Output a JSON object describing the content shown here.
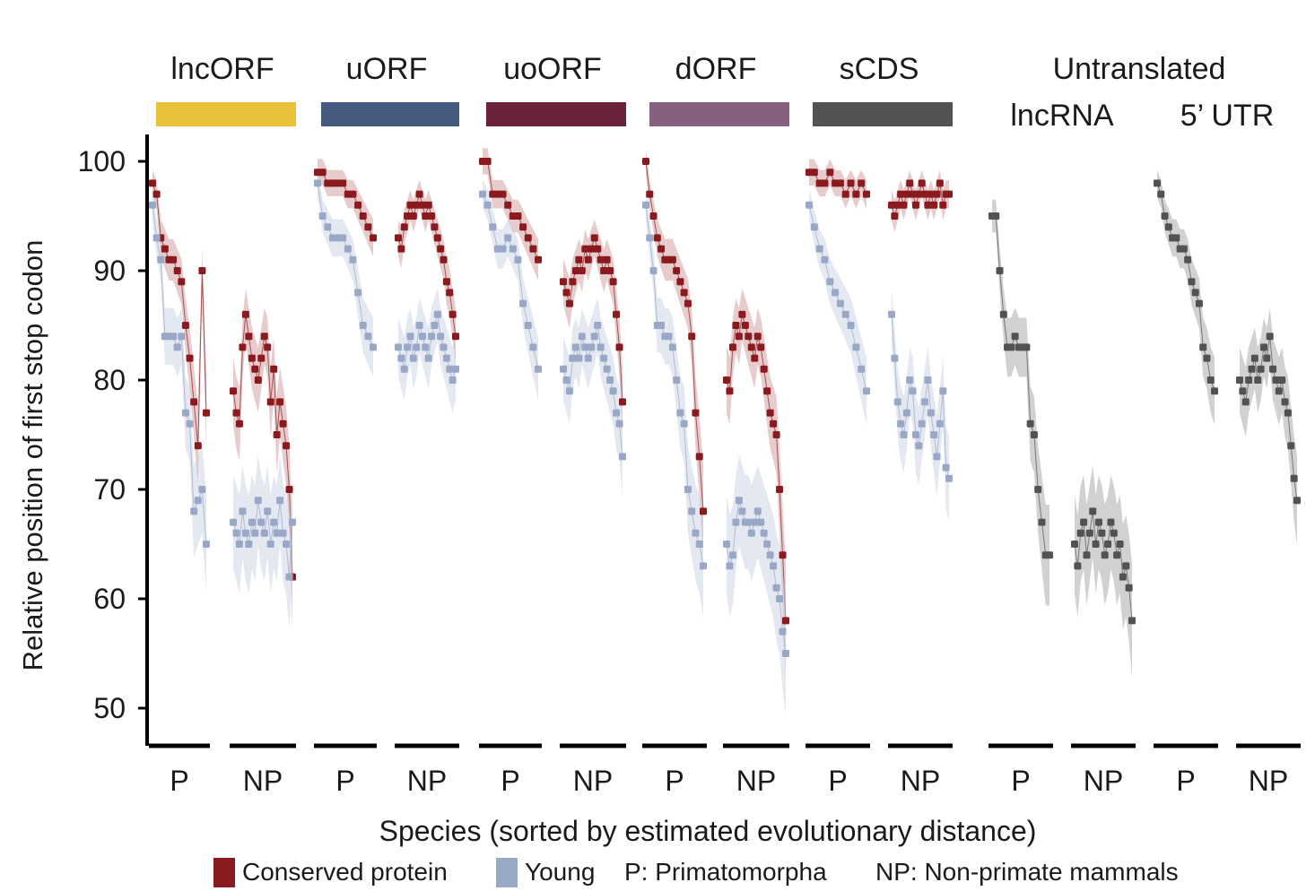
{
  "chart_data": {
    "type": "scatter",
    "title": "",
    "xlabel": "Species (sorted by estimated evolutionary distance)",
    "ylabel": "Relative position of first stop codon",
    "ylim": [
      48,
      103
    ],
    "yticks": [
      100,
      90,
      80,
      70,
      60,
      50
    ],
    "grid": false,
    "groups": [
      {
        "label": "lncORF",
        "color": "#e8c23a",
        "kind": "translated"
      },
      {
        "label": "uORF",
        "color": "#465a80",
        "kind": "translated"
      },
      {
        "label": "uoORF",
        "color": "#6b2139",
        "kind": "translated"
      },
      {
        "label": "dORF",
        "color": "#86607f",
        "kind": "translated"
      },
      {
        "label": "sCDS",
        "color": "#525252",
        "kind": "translated"
      },
      {
        "label": "lncRNA",
        "kind": "untranslated"
      },
      {
        "label": "5’ UTR",
        "kind": "untranslated"
      }
    ],
    "untranslated_header": "Untranslated",
    "subgroup_labels": [
      "P",
      "NP"
    ],
    "series_colors": {
      "Conserved protein": "#8b1a1f",
      "Young": "#9aa8c7",
      "Untranslated": "#525252"
    },
    "series": [
      {
        "group": "lncORF",
        "name": "Conserved protein",
        "P": [
          98,
          97,
          93,
          92,
          91,
          91,
          90,
          89,
          85,
          82,
          78,
          74,
          90,
          77
        ],
        "NP": [
          79,
          77,
          76,
          83,
          86,
          84,
          82,
          81,
          80,
          82,
          84,
          83,
          78,
          81,
          75,
          78,
          76,
          74,
          70,
          62
        ]
      },
      {
        "group": "lncORF",
        "name": "Young",
        "P": [
          96,
          93,
          91,
          84,
          84,
          84,
          83,
          84,
          77,
          76,
          68,
          69,
          70,
          65
        ],
        "NP": [
          67,
          66,
          65,
          68,
          66,
          65,
          67,
          66,
          69,
          67,
          66,
          68,
          65,
          67,
          66,
          69,
          66,
          65,
          62,
          67
        ]
      },
      {
        "group": "uORF",
        "name": "Conserved protein",
        "P": [
          99,
          99,
          98,
          98,
          98,
          98,
          97,
          97,
          96,
          95,
          94,
          93
        ],
        "NP": [
          93,
          92,
          94,
          95,
          96,
          95,
          96,
          97,
          96,
          95,
          96,
          95,
          94,
          93,
          92,
          91,
          89,
          88,
          86,
          84
        ]
      },
      {
        "group": "uORF",
        "name": "Young",
        "P": [
          98,
          95,
          94,
          93,
          93,
          93,
          92,
          91,
          88,
          85,
          84,
          83
        ],
        "NP": [
          83,
          82,
          81,
          83,
          84,
          82,
          83,
          85,
          84,
          83,
          82,
          84,
          85,
          86,
          84,
          83,
          82,
          81,
          80,
          81
        ]
      },
      {
        "group": "uoORF",
        "name": "Conserved protein",
        "P": [
          100,
          100,
          97,
          97,
          97,
          96,
          95,
          95,
          94,
          93,
          92,
          91
        ],
        "NP": [
          89,
          88,
          87,
          89,
          90,
          91,
          90,
          92,
          91,
          92,
          93,
          92,
          91,
          90,
          91,
          90,
          89,
          86,
          83,
          78
        ]
      },
      {
        "group": "uoORF",
        "name": "Young",
        "P": [
          97,
          96,
          94,
          92,
          92,
          93,
          92,
          91,
          87,
          85,
          83,
          81
        ],
        "NP": [
          81,
          80,
          79,
          82,
          83,
          82,
          84,
          83,
          82,
          83,
          84,
          85,
          83,
          82,
          81,
          80,
          79,
          77,
          76,
          73
        ]
      },
      {
        "group": "dORF",
        "name": "Conserved protein",
        "P": [
          100,
          97,
          95,
          93,
          92,
          91,
          91,
          91,
          90,
          89,
          88,
          87,
          84,
          77,
          73,
          68
        ],
        "NP": [
          80,
          79,
          83,
          85,
          84,
          86,
          85,
          84,
          83,
          82,
          84,
          83,
          81,
          79,
          77,
          76,
          75,
          70,
          64,
          58
        ]
      },
      {
        "group": "dORF",
        "name": "Young",
        "P": [
          96,
          93,
          90,
          85,
          85,
          84,
          84,
          83,
          80,
          77,
          76,
          70,
          68,
          66,
          65,
          63
        ],
        "NP": [
          65,
          63,
          64,
          67,
          69,
          68,
          67,
          67,
          66,
          67,
          68,
          67,
          66,
          65,
          64,
          63,
          61,
          60,
          57,
          55
        ]
      },
      {
        "group": "sCDS",
        "name": "Conserved protein",
        "P": [
          99,
          99,
          98,
          98,
          99,
          98,
          98,
          97,
          98,
          97,
          98,
          97
        ],
        "NP": [
          96,
          95,
          96,
          97,
          96,
          97,
          98,
          97,
          96,
          97,
          98,
          97,
          96,
          97,
          96,
          97,
          98,
          96,
          97,
          97
        ]
      },
      {
        "group": "sCDS",
        "name": "Young",
        "P": [
          96,
          94,
          92,
          91,
          89,
          88,
          87,
          86,
          85,
          83,
          81,
          79
        ],
        "NP": [
          86,
          82,
          78,
          76,
          75,
          77,
          80,
          79,
          75,
          74,
          76,
          78,
          80,
          77,
          75,
          73,
          76,
          79,
          72,
          71
        ]
      },
      {
        "group": "lncRNA",
        "name": "Untranslated",
        "P": [
          95,
          95,
          90,
          86,
          83,
          83,
          84,
          83,
          83,
          83,
          76,
          75,
          70,
          67,
          64,
          64
        ],
        "NP": [
          65,
          63,
          66,
          67,
          64,
          66,
          68,
          65,
          67,
          66,
          64,
          65,
          67,
          66,
          64,
          65,
          62,
          63,
          61,
          58
        ]
      },
      {
        "group": "5’ UTR",
        "name": "Untranslated",
        "P": [
          98,
          97,
          95,
          94,
          93,
          93,
          92,
          92,
          91,
          89,
          88,
          87,
          83,
          82,
          80,
          79
        ],
        "NP": [
          80,
          79,
          78,
          80,
          81,
          82,
          80,
          81,
          83,
          82,
          84,
          81,
          80,
          79,
          80,
          78,
          77,
          74,
          71,
          69
        ]
      }
    ],
    "legend": {
      "position": "bottom",
      "entries": [
        {
          "label": "Conserved protein",
          "color": "#8b1a1f"
        },
        {
          "label": "Young",
          "color": "#9aa8c7"
        }
      ],
      "notes": [
        "P: Primatomorpha",
        "NP: Non-primate mammals"
      ]
    }
  }
}
